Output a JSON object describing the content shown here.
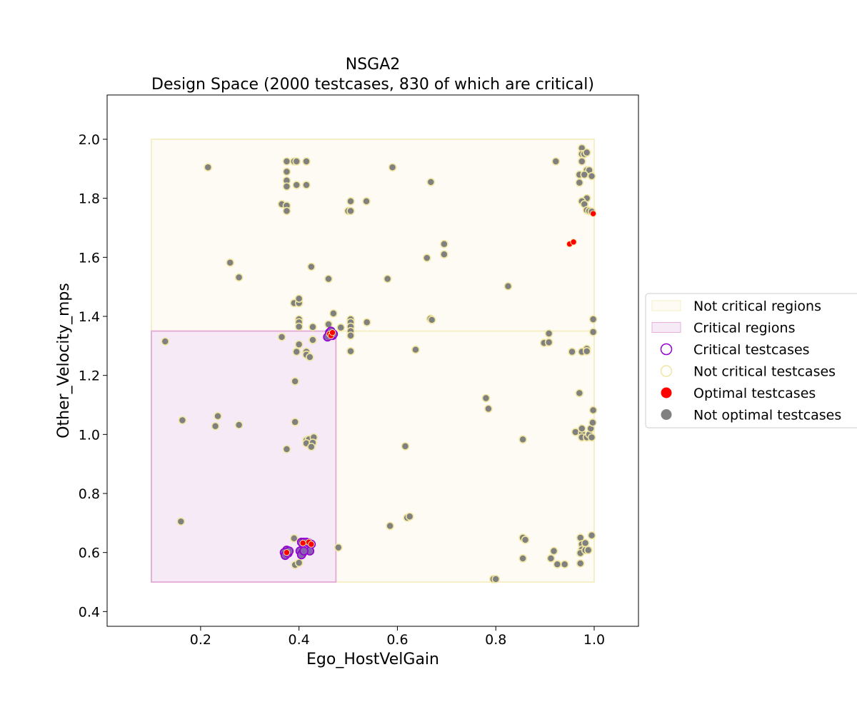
{
  "chart_data": {
    "type": "scatter",
    "title": "NSGA2",
    "subtitle": "Design Space (2000 testcases, 830 of which are critical)",
    "xlabel": "Ego_HostVelGain",
    "ylabel": "Other_Velocity_mps",
    "xlim": [
      0.01,
      1.09
    ],
    "ylim": [
      0.35,
      2.15
    ],
    "xticks": [
      0.2,
      0.4,
      0.6,
      0.8,
      1.0
    ],
    "xtick_labels": [
      "0.2",
      "0.4",
      "0.6",
      "0.8",
      "1.0"
    ],
    "yticks": [
      0.4,
      0.6,
      0.8,
      1.0,
      1.2,
      1.4,
      1.6,
      1.8,
      2.0
    ],
    "ytick_labels": [
      "0.4",
      "0.6",
      "0.8",
      "1.0",
      "1.2",
      "1.4",
      "1.6",
      "1.8",
      "2.0"
    ],
    "grid": false,
    "legend_position": "right-outside",
    "colors": {
      "not_critical_region_fill": "#fdfbf3",
      "not_critical_region_edge": "#f5f0c8",
      "critical_region_fill": "#f6eaf6",
      "critical_region_edge": "#e4b0d8",
      "critical_edge": "#9400d3",
      "critical_fill": "#8a60b0",
      "not_critical_edge": "#f0e6a0",
      "optimal": "#ff0000",
      "not_optimal": "#808080"
    },
    "regions": [
      {
        "kind": "not_critical",
        "x": [
          0.1,
          1.0
        ],
        "y": [
          1.35,
          2.0
        ]
      },
      {
        "kind": "not_critical",
        "x": [
          0.475,
          1.0
        ],
        "y": [
          0.5,
          1.35
        ]
      },
      {
        "kind": "critical",
        "x": [
          0.1,
          0.475
        ],
        "y": [
          0.5,
          1.35
        ]
      }
    ],
    "legend": [
      {
        "label": "Not critical regions",
        "symbol": "region_not_critical"
      },
      {
        "label": "Critical regions",
        "symbol": "region_critical"
      },
      {
        "label": "Critical testcases",
        "symbol": "circle_critical"
      },
      {
        "label": "Not critical testcases",
        "symbol": "circle_not_critical"
      },
      {
        "label": "Optimal testcases",
        "symbol": "dot_optimal"
      },
      {
        "label": "Not optimal testcases",
        "symbol": "dot_not_optimal"
      }
    ],
    "series": [
      {
        "name": "Not critical testcases",
        "critical": false,
        "points": [
          [
            0.215,
            1.905
          ],
          [
            0.375,
            1.925
          ],
          [
            0.39,
            1.925
          ],
          [
            0.395,
            1.925
          ],
          [
            0.415,
            1.925
          ],
          [
            0.375,
            1.89
          ],
          [
            0.375,
            1.86
          ],
          [
            0.375,
            1.84
          ],
          [
            0.395,
            1.845
          ],
          [
            0.415,
            1.845
          ],
          [
            0.365,
            1.78
          ],
          [
            0.375,
            1.775
          ],
          [
            0.375,
            1.757
          ],
          [
            0.26,
            1.582
          ],
          [
            0.278,
            1.532
          ],
          [
            0.425,
            1.568
          ],
          [
            0.46,
            1.527
          ],
          [
            0.58,
            1.527
          ],
          [
            0.59,
            1.905
          ],
          [
            0.668,
            1.855
          ],
          [
            0.5,
            1.757
          ],
          [
            0.505,
            1.757
          ],
          [
            0.505,
            1.79
          ],
          [
            0.537,
            1.79
          ],
          [
            0.66,
            1.598
          ],
          [
            0.695,
            1.61
          ],
          [
            0.695,
            1.645
          ],
          [
            0.825,
            1.502
          ],
          [
            0.922,
            1.925
          ],
          [
            0.975,
            1.97
          ],
          [
            0.975,
            1.95
          ],
          [
            0.98,
            1.95
          ],
          [
            0.985,
            1.955
          ],
          [
            0.975,
            1.925
          ],
          [
            0.985,
            1.895
          ],
          [
            0.99,
            1.895
          ],
          [
            0.97,
            1.88
          ],
          [
            0.98,
            1.88
          ],
          [
            0.995,
            1.875
          ],
          [
            0.97,
            1.853
          ],
          [
            0.985,
            1.8
          ],
          [
            0.975,
            1.79
          ],
          [
            0.98,
            1.78
          ],
          [
            0.985,
            1.76
          ],
          [
            0.99,
            1.757
          ],
          [
            0.995,
            1.755
          ],
          [
            0.39,
            1.445
          ],
          [
            0.4,
            1.445
          ],
          [
            0.4,
            1.46
          ],
          [
            0.4,
            1.39
          ],
          [
            0.4,
            1.38
          ],
          [
            0.4,
            1.365
          ],
          [
            0.47,
            1.41
          ],
          [
            0.505,
            1.39
          ],
          [
            0.505,
            1.38
          ],
          [
            0.505,
            1.365
          ],
          [
            0.505,
            1.35
          ],
          [
            0.505,
            1.335
          ],
          [
            0.538,
            1.38
          ],
          [
            0.485,
            1.362
          ],
          [
            0.428,
            1.364
          ],
          [
            0.46,
            1.373
          ],
          [
            0.667,
            1.392
          ],
          [
            0.67,
            1.388
          ],
          [
            0.365,
            1.33
          ],
          [
            0.4,
            1.305
          ],
          [
            0.428,
            1.32
          ],
          [
            0.395,
            1.28
          ],
          [
            0.415,
            1.28
          ],
          [
            0.415,
            1.27
          ],
          [
            0.422,
            1.262
          ],
          [
            0.505,
            1.282
          ],
          [
            0.637,
            1.287
          ],
          [
            0.898,
            1.31
          ],
          [
            0.908,
            1.312
          ],
          [
            0.908,
            1.342
          ],
          [
            0.955,
            1.28
          ],
          [
            0.975,
            1.28
          ],
          [
            0.985,
            1.29
          ],
          [
            0.985,
            1.282
          ],
          [
            0.998,
            1.39
          ],
          [
            0.998,
            1.347
          ],
          [
            0.128,
            1.315
          ],
          [
            0.392,
            1.18
          ],
          [
            0.97,
            1.14
          ],
          [
            0.163,
            1.048
          ],
          [
            0.235,
            1.062
          ],
          [
            0.23,
            1.028
          ],
          [
            0.278,
            1.032
          ],
          [
            0.392,
            1.042
          ],
          [
            0.415,
            0.98
          ],
          [
            0.42,
            0.983
          ],
          [
            0.43,
            0.99
          ],
          [
            0.415,
            0.97
          ],
          [
            0.428,
            0.972
          ],
          [
            0.425,
            0.958
          ],
          [
            0.375,
            0.95
          ],
          [
            0.616,
            0.96
          ],
          [
            0.78,
            1.123
          ],
          [
            0.785,
            1.087
          ],
          [
            0.855,
            0.983
          ],
          [
            0.962,
            1.008
          ],
          [
            0.975,
            1.005
          ],
          [
            0.975,
            1.02
          ],
          [
            0.975,
            0.99
          ],
          [
            0.985,
            0.99
          ],
          [
            0.99,
            1.0
          ],
          [
            0.993,
            1.02
          ],
          [
            0.995,
            0.99
          ],
          [
            0.997,
            1.04
          ],
          [
            0.998,
            1.082
          ],
          [
            0.16,
            0.705
          ],
          [
            0.39,
            0.648
          ],
          [
            0.48,
            0.617
          ],
          [
            0.585,
            0.69
          ],
          [
            0.62,
            0.718
          ],
          [
            0.625,
            0.722
          ],
          [
            0.795,
            0.51
          ],
          [
            0.8,
            0.51
          ],
          [
            0.855,
            0.65
          ],
          [
            0.86,
            0.643
          ],
          [
            0.855,
            0.58
          ],
          [
            0.912,
            0.58
          ],
          [
            0.918,
            0.605
          ],
          [
            0.925,
            0.56
          ],
          [
            0.94,
            0.56
          ],
          [
            0.972,
            0.65
          ],
          [
            0.975,
            0.628
          ],
          [
            0.982,
            0.632
          ],
          [
            0.975,
            0.61
          ],
          [
            0.972,
            0.598
          ],
          [
            0.982,
            0.608
          ],
          [
            0.988,
            0.608
          ],
          [
            0.972,
            0.563
          ],
          [
            0.995,
            0.658
          ],
          [
            0.392,
            0.558
          ],
          [
            0.4,
            0.565
          ]
        ]
      },
      {
        "name": "Critical testcases",
        "critical": true,
        "points": [
          [
            0.462,
            1.345
          ],
          [
            0.462,
            1.335
          ],
          [
            0.468,
            1.335
          ],
          [
            0.47,
            1.34
          ],
          [
            0.458,
            1.33
          ],
          [
            0.465,
            1.35
          ],
          [
            0.375,
            0.608
          ],
          [
            0.37,
            0.6
          ],
          [
            0.372,
            0.59
          ],
          [
            0.378,
            0.598
          ],
          [
            0.38,
            0.605
          ],
          [
            0.405,
            0.635
          ],
          [
            0.41,
            0.635
          ],
          [
            0.415,
            0.635
          ],
          [
            0.42,
            0.632
          ],
          [
            0.425,
            0.628
          ],
          [
            0.405,
            0.608
          ],
          [
            0.402,
            0.605
          ],
          [
            0.408,
            0.6
          ],
          [
            0.422,
            0.605
          ],
          [
            0.405,
            0.592
          ],
          [
            0.41,
            0.605
          ]
        ]
      }
    ],
    "optimal_points": [
      [
        0.998,
        1.748
      ],
      [
        0.95,
        1.645
      ],
      [
        0.958,
        1.652
      ],
      [
        0.462,
        1.34
      ],
      [
        0.465,
        1.335
      ],
      [
        0.468,
        1.345
      ],
      [
        0.375,
        0.6
      ],
      [
        0.408,
        0.632
      ],
      [
        0.42,
        0.635
      ],
      [
        0.425,
        0.628
      ]
    ]
  }
}
